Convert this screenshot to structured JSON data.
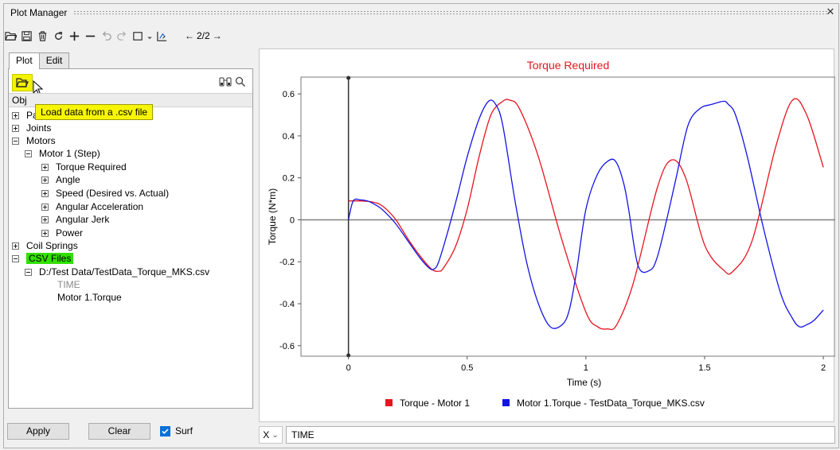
{
  "window": {
    "title": "Plot Manager",
    "close_glyph": "✕"
  },
  "toolbar": {
    "icons": [
      "open-folder-icon",
      "save-icon",
      "delete-icon",
      "refresh-icon",
      "add-icon",
      "remove-icon",
      "undo-icon",
      "redo-icon",
      "select-box-icon",
      "dropdown-arrow-icon",
      "export-chart-icon"
    ],
    "nav_prev": "←",
    "page": "2/2",
    "nav_next": "→"
  },
  "tabs": [
    {
      "label": "Plot",
      "active": true
    },
    {
      "label": "Edit",
      "active": false
    }
  ],
  "pane": {
    "header": "Obj",
    "tooltip": "Load data from a .csv file"
  },
  "tree": {
    "n_parts": "Parts",
    "n_joints": "Joints",
    "n_motors": "Motors",
    "n_motor1": "Motor 1 (Step)",
    "n_torque": "Torque Required",
    "n_angle": "Angle",
    "n_speed": "Speed (Desired vs. Actual)",
    "n_accel": "Angular Acceleration",
    "n_jerk": "Angular Jerk",
    "n_power": "Power",
    "n_springs": "Coil Springs",
    "n_csv": "CSV Files",
    "n_file": "D:/Test Data/TestData_Torque_MKS.csv",
    "n_time": "TIME",
    "n_mtorque": "Motor 1.Torque"
  },
  "bottom": {
    "apply": "Apply",
    "clear": "Clear",
    "surf": "Surf",
    "surf_checked": true
  },
  "x_selector": {
    "value": "X",
    "arrow": "⌄",
    "input": "TIME"
  },
  "colors": {
    "series_red": "#e8141f",
    "series_blue": "#1414e6",
    "tooltip_bg": "#f7f600",
    "highlight_green": "#32e000",
    "title_red": "#e8141f"
  },
  "chart_data": {
    "type": "line",
    "title": "Torque Required",
    "xlabel": "Time (s)",
    "ylabel": "Torque (N*m)",
    "xlim": [
      -0.2,
      2.05
    ],
    "ylim": [
      -0.65,
      0.68
    ],
    "xticks": [
      0,
      0.5,
      1,
      1.5,
      2
    ],
    "yticks": [
      -0.6,
      -0.4,
      -0.2,
      0,
      0.2,
      0.4,
      0.6
    ],
    "grid": false,
    "legend_position": "bottom",
    "series": [
      {
        "name": "Torque - Motor 1",
        "color": "#e8141f",
        "x": [
          0,
          0.02,
          0.05,
          0.08,
          0.1,
          0.13,
          0.16,
          0.2,
          0.25,
          0.3,
          0.35,
          0.38,
          0.4,
          0.45,
          0.5,
          0.55,
          0.6,
          0.65,
          0.68,
          0.72,
          0.8,
          0.9,
          1.0,
          1.05,
          1.09,
          1.13,
          1.2,
          1.3,
          1.36,
          1.42,
          1.5,
          1.58,
          1.62,
          1.7,
          1.8,
          1.87,
          1.93,
          2.0
        ],
        "y": [
          0.09,
          0.09,
          0.09,
          0.088,
          0.085,
          0.075,
          0.05,
          0.0,
          -0.09,
          -0.17,
          -0.235,
          -0.245,
          -0.23,
          -0.13,
          0.05,
          0.3,
          0.5,
          0.565,
          0.57,
          0.53,
          0.3,
          -0.1,
          -0.44,
          -0.51,
          -0.52,
          -0.5,
          -0.3,
          0.15,
          0.285,
          0.2,
          -0.12,
          -0.24,
          -0.245,
          -0.1,
          0.35,
          0.57,
          0.5,
          0.25
        ]
      },
      {
        "name": "Motor 1.Torque - TestData_Torque_MKS.csv",
        "color": "#1414e6",
        "x": [
          0,
          0.02,
          0.05,
          0.08,
          0.1,
          0.13,
          0.16,
          0.2,
          0.25,
          0.3,
          0.34,
          0.36,
          0.38,
          0.42,
          0.46,
          0.5,
          0.55,
          0.59,
          0.62,
          0.65,
          0.7,
          0.75,
          0.8,
          0.85,
          0.9,
          0.93,
          0.96,
          1.0,
          1.05,
          1.1,
          1.13,
          1.16,
          1.18,
          1.22,
          1.27,
          1.3,
          1.34,
          1.38,
          1.43,
          1.48,
          1.53,
          1.58,
          1.6,
          1.63,
          1.68,
          1.75,
          1.82,
          1.87,
          1.9,
          1.93,
          1.96,
          2.0
        ],
        "y": [
          0.0,
          0.09,
          0.095,
          0.09,
          0.08,
          0.06,
          0.03,
          -0.02,
          -0.1,
          -0.18,
          -0.23,
          -0.235,
          -0.2,
          -0.05,
          0.12,
          0.3,
          0.48,
          0.565,
          0.55,
          0.45,
          0.1,
          -0.2,
          -0.4,
          -0.51,
          -0.5,
          -0.43,
          -0.25,
          0.05,
          0.22,
          0.285,
          0.27,
          0.17,
          0.05,
          -0.22,
          -0.24,
          -0.18,
          0.0,
          0.2,
          0.45,
          0.53,
          0.55,
          0.565,
          0.55,
          0.5,
          0.3,
          -0.05,
          -0.35,
          -0.47,
          -0.51,
          -0.5,
          -0.48,
          -0.43
        ]
      }
    ]
  }
}
